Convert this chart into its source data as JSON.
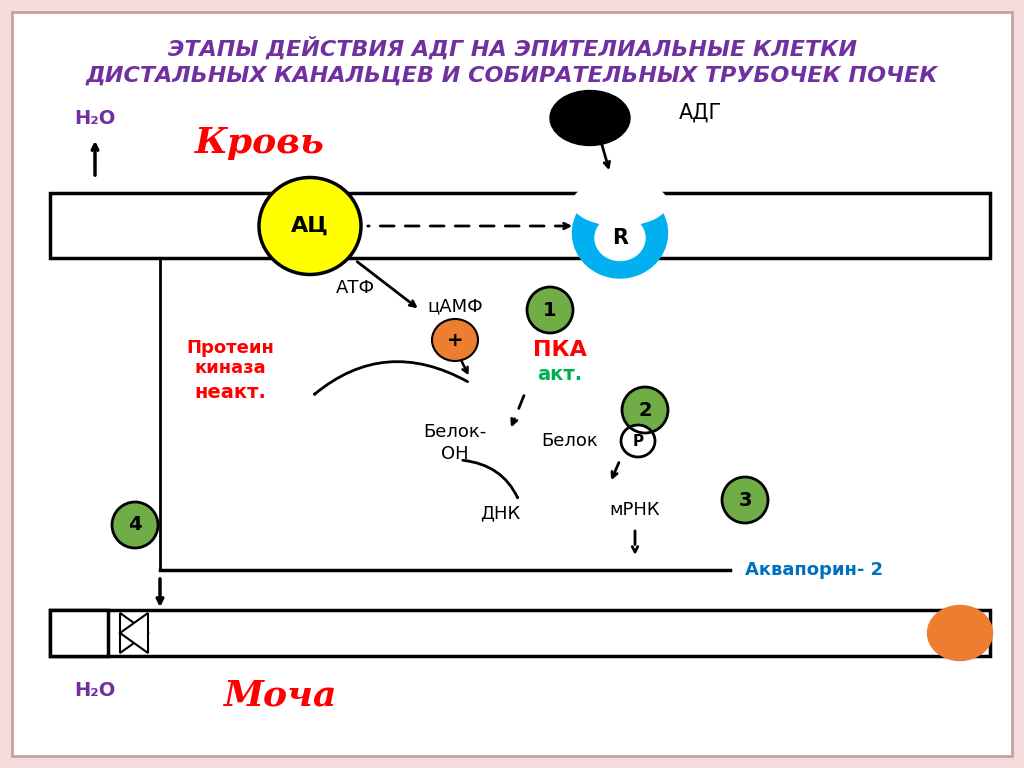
{
  "title_line1": "ЭТАПЫ ДЕЙСТВИЯ АДГ НА ЭПИТЕЛИАЛЬНЫЕ КЛЕТКИ",
  "title_line2": "ДИСТАЛЬНЫХ КАНАЛЬЦЕВ И СОБИРАТЕЛЬНЫХ ТРУБОЧЕК ПОЧЕК",
  "title_color": "#7030A0",
  "bg_color": "#FFFFFF",
  "blood_label": "Кровь",
  "blood_color": "#FF0000",
  "adg_label": "АДГ",
  "h2o_top_label": "H₂O",
  "h2o_bottom_label": "H₂O",
  "mocha_label": "Моча",
  "mocha_color": "#FF0000",
  "ac_label": "АЦ",
  "r_label": "R",
  "atf_label": "АТФ",
  "camp_label": "цАМФ",
  "pka_label": "ПКА",
  "pka_akt_label": "акт.",
  "protein_kinase_line1": "Протеин",
  "protein_kinase_line2": "киназа",
  "protein_kinase_line3": "неакт.",
  "belok_oh_label": "Белок-\nОН",
  "belok_p_label": "Белок",
  "p_label": "Р",
  "dnk_label": "ДНК",
  "mrna_label": "мРНК",
  "aquaporin_label": "Аквапорин- 2",
  "aquaporin_color": "#0070C0",
  "green_circle_color": "#70AD47",
  "orange_circle_color": "#ED7D31",
  "step1": "1",
  "step2": "2",
  "step3": "3",
  "step4": "4",
  "border_outer_color": "#C9A0A0",
  "border_inner_color": "#F5DCDC"
}
